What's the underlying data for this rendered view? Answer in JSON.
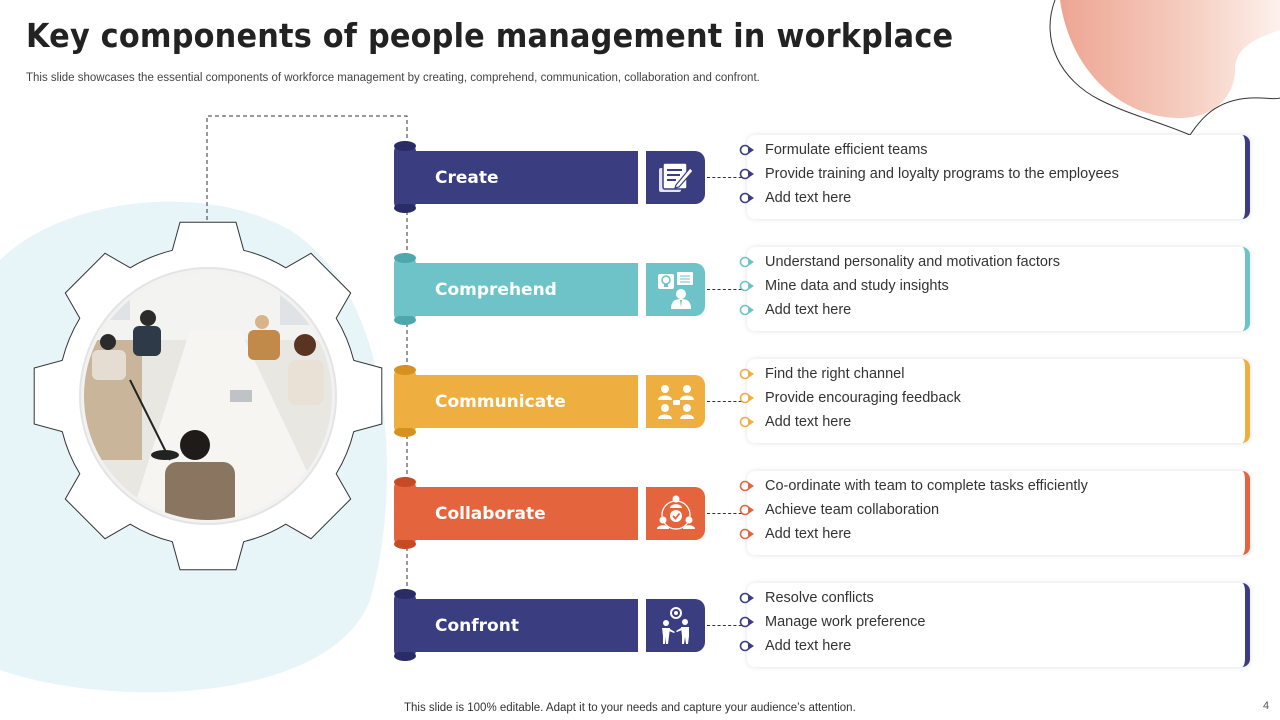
{
  "slide": {
    "title": "Key components of people management in workplace",
    "subtitle": "This slide showcases the essential components of workforce management by creating, comprehend, communication, collaboration and confront.",
    "footer": "This slide is 100% editable. Adapt it to your needs and capture your audience’s attention.",
    "page_number": "4"
  },
  "image": {
    "description": "team-meeting-photo",
    "frame": "gear-shape"
  },
  "colors": {
    "navy": "#3a3d80",
    "teal": "#6ec3c9",
    "yellow": "#eeae40",
    "orange": "#e4643e",
    "bg_blob": "#e8f5f8",
    "peach": "#f2b5a3"
  },
  "components": [
    {
      "label": "Create",
      "icon": "edit-document-icon",
      "color": "#3a3d80",
      "dark": "#2a2c66",
      "bullets": [
        "Formulate efficient teams",
        "Provide training and loyalty programs to the employees",
        "Add text here"
      ]
    },
    {
      "label": "Comprehend",
      "icon": "idea-person-icon",
      "color": "#6ec3c9",
      "dark": "#4fa7ae",
      "bullets": [
        "Understand personality and motivation factors",
        "Mine data and study insights",
        "Add text here"
      ]
    },
    {
      "label": "Communicate",
      "icon": "group-chat-icon",
      "color": "#eeae40",
      "dark": "#d6921f",
      "bullets": [
        "Find the right channel",
        "Provide encouraging feedback",
        "Add text here"
      ]
    },
    {
      "label": "Collaborate",
      "icon": "team-collaboration-icon",
      "color": "#e4643e",
      "dark": "#c54a25",
      "bullets": [
        "Co-ordinate with team to complete tasks efficiently",
        "Achieve team collaboration",
        "Add text here"
      ]
    },
    {
      "label": "Confront",
      "icon": "conflict-icon",
      "color": "#3a3d80",
      "dark": "#2a2c66",
      "bullets": [
        "Resolve conflicts",
        "Manage work preference",
        "Add text here"
      ]
    }
  ]
}
